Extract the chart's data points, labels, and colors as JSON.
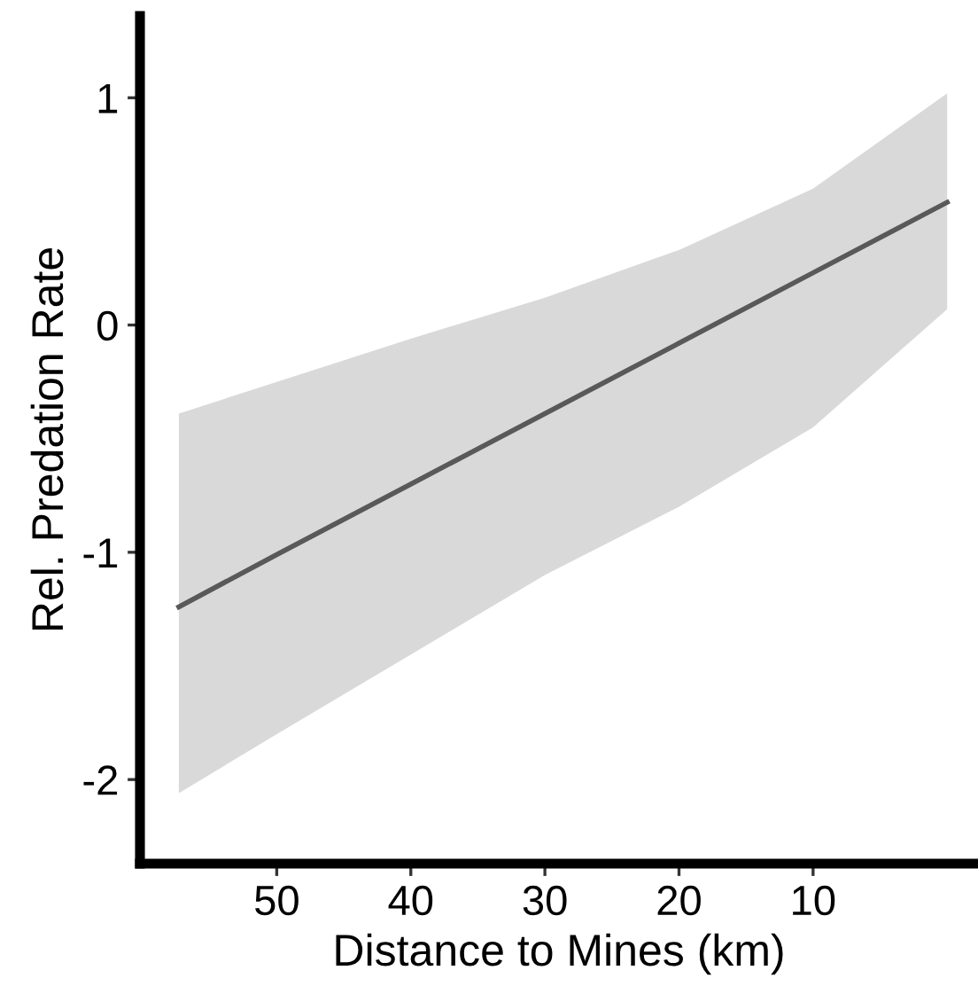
{
  "chart_data": {
    "type": "line",
    "xlabel": "Distance to Mines (km)",
    "ylabel": "Rel. Predation Rate",
    "xlim": [
      60.2,
      -2.3
    ],
    "ylim": [
      -2.37,
      1.36
    ],
    "xticks": [
      50,
      40,
      30,
      20,
      10
    ],
    "yticks": [
      1,
      0,
      -1,
      -2
    ],
    "grid": false,
    "legend": false,
    "series": [
      {
        "color": "#595959",
        "x": [
          57.3,
          50,
          40,
          30,
          20,
          10,
          0
        ],
        "values": [
          -1.24,
          -1.01,
          -0.7,
          -0.39,
          -0.08,
          0.23,
          0.54
        ],
        "lower": [
          -2.06,
          -1.8,
          -1.45,
          -1.1,
          -0.8,
          -0.45,
          0.07
        ],
        "upper": [
          -0.39,
          -0.25,
          -0.06,
          0.12,
          0.33,
          0.6,
          1.02
        ]
      }
    ]
  }
}
